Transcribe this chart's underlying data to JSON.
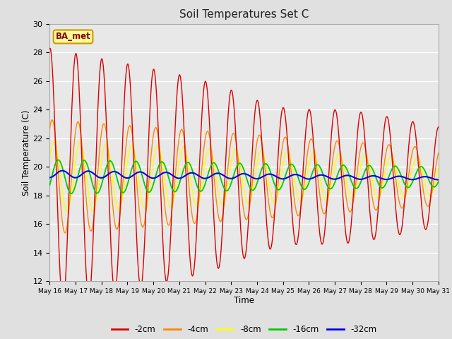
{
  "title": "Soil Temperatures Set C",
  "xlabel": "Time",
  "ylabel": "Soil Temperature (C)",
  "ylim": [
    12,
    30
  ],
  "yticks": [
    12,
    14,
    16,
    18,
    20,
    22,
    24,
    26,
    28,
    30
  ],
  "colors": {
    "-2cm": "#dd0000",
    "-4cm": "#ff8800",
    "-8cm": "#ffff00",
    "-16cm": "#00cc00",
    "-32cm": "#0000ee"
  },
  "legend_label": "BA_met",
  "legend_box_facecolor": "#ffff99",
  "legend_box_edgecolor": "#cc9900",
  "legend_text_color": "#880000",
  "fig_facecolor": "#e0e0e0",
  "ax_facecolor": "#e8e8e8",
  "grid_color": "#ffffff",
  "n_days": 15,
  "start_day": 16,
  "base_temp": 19.3,
  "base_32": 19.5
}
